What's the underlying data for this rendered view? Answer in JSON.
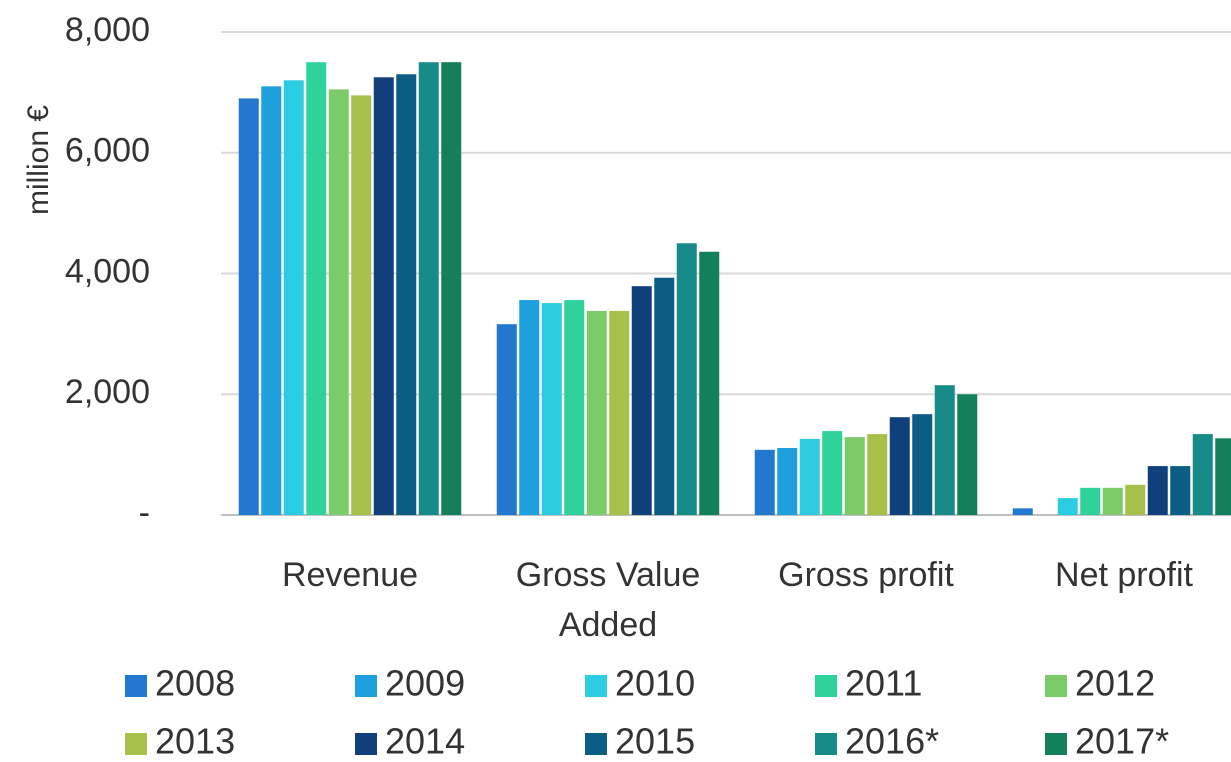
{
  "chart_data": {
    "type": "bar",
    "y_label": "million €",
    "categories": [
      "Revenue",
      "Gross Value Added",
      "Gross profit",
      "Net profit"
    ],
    "series": [
      {
        "name": "2008",
        "color": "#2277cf",
        "values": [
          6900,
          3160,
          1080,
          110
        ]
      },
      {
        "name": "2009",
        "color": "#1fa0de",
        "values": [
          7100,
          3560,
          1110,
          0
        ]
      },
      {
        "name": "2010",
        "color": "#2ccde2",
        "values": [
          7200,
          3510,
          1260,
          280
        ]
      },
      {
        "name": "2011",
        "color": "#2fd29b",
        "values": [
          7500,
          3560,
          1390,
          450
        ]
      },
      {
        "name": "2012",
        "color": "#7ccb6b",
        "values": [
          7050,
          3380,
          1290,
          450
        ]
      },
      {
        "name": "2013",
        "color": "#a6c04a",
        "values": [
          6950,
          3380,
          1340,
          500
        ]
      },
      {
        "name": "2014",
        "color": "#10407b",
        "values": [
          7250,
          3790,
          1620,
          810
        ]
      },
      {
        "name": "2015",
        "color": "#0b5d86",
        "values": [
          7300,
          3930,
          1670,
          810
        ]
      },
      {
        "name": "2016*",
        "color": "#178b87",
        "values": [
          7500,
          4500,
          2150,
          1340
        ]
      },
      {
        "name": "2017*",
        "color": "#137f5b",
        "values": [
          7500,
          4360,
          2000,
          1270
        ]
      }
    ],
    "ylim": [
      0,
      8000
    ],
    "yticks": [
      {
        "value": 0,
        "label": "-"
      },
      {
        "value": 2000,
        "label": "2,000"
      },
      {
        "value": 4000,
        "label": "4,000"
      },
      {
        "value": 6000,
        "label": "6,000"
      },
      {
        "value": 8000,
        "label": "8,000"
      }
    ],
    "grid": true,
    "legend": "bottom"
  }
}
